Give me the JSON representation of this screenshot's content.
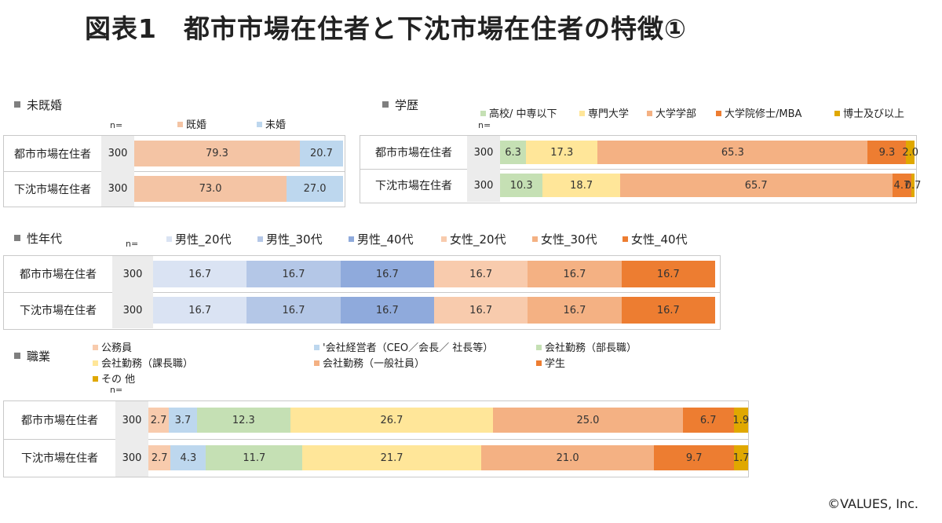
{
  "title": "図表1　都市市場在住者と下沈市場在住者の特徴①",
  "copyright": "©VALUES, Inc.",
  "n_label": "n=",
  "chart_data": [
    {
      "type": "bar",
      "stacked": true,
      "orientation": "horizontal",
      "title": "未既婚",
      "categories": [
        "都市市場在住者",
        "下沈市場在住者"
      ],
      "n": [
        300,
        300
      ],
      "series": [
        {
          "name": "既婚",
          "color": "#f4c4a4",
          "values": [
            79.3,
            73.0
          ]
        },
        {
          "name": "未婚",
          "color": "#bdd7ee",
          "values": [
            20.7,
            27.0
          ]
        }
      ],
      "labels": [
        [
          "79.3",
          "20.7"
        ],
        [
          "73.0",
          "27.0"
        ]
      ]
    },
    {
      "type": "bar",
      "stacked": true,
      "orientation": "horizontal",
      "title": "学歴",
      "categories": [
        "都市市場在住者",
        "下沈市場在住者"
      ],
      "n": [
        300,
        300
      ],
      "series": [
        {
          "name": "高校/ 中専以下",
          "color": "#c5e0b4",
          "values": [
            6.3,
            10.3
          ]
        },
        {
          "name": "専門大学",
          "color": "#ffe699",
          "values": [
            17.3,
            18.7
          ]
        },
        {
          "name": "大学学部",
          "color": "#f4b183",
          "values": [
            65.3,
            65.7
          ]
        },
        {
          "name": "大学院修士/MBA",
          "color": "#ed7d31",
          "values": [
            9.3,
            4.7
          ]
        },
        {
          "name": "博士及び以上",
          "color": "#e0a800",
          "values": [
            2.0,
            0.7
          ]
        }
      ],
      "labels": [
        [
          "6.3",
          "17.3",
          "65.3",
          "9.3",
          "2.0"
        ],
        [
          "10.3",
          "18.7",
          "65.7",
          "4.7",
          "0.7"
        ]
      ]
    },
    {
      "type": "bar",
      "stacked": true,
      "orientation": "horizontal",
      "title": "性年代",
      "categories": [
        "都市市場在住者",
        "下沈市場在住者"
      ],
      "n": [
        300,
        300
      ],
      "series": [
        {
          "name": "男性_20代",
          "color": "#dae3f3",
          "values": [
            16.7,
            16.7
          ]
        },
        {
          "name": "男性_30代",
          "color": "#b4c7e7",
          "values": [
            16.7,
            16.7
          ]
        },
        {
          "name": "男性_40代",
          "color": "#8faadc",
          "values": [
            16.7,
            16.7
          ]
        },
        {
          "name": "女性_20代",
          "color": "#f8cbad",
          "values": [
            16.7,
            16.7
          ]
        },
        {
          "name": "女性_30代",
          "color": "#f4b183",
          "values": [
            16.7,
            16.7
          ]
        },
        {
          "name": "女性_40代",
          "color": "#ed7d31",
          "values": [
            16.7,
            16.7
          ]
        }
      ],
      "labels": [
        [
          "16.7",
          "16.7",
          "16.7",
          "16.7",
          "16.7",
          "16.7"
        ],
        [
          "16.7",
          "16.7",
          "16.7",
          "16.7",
          "16.7",
          "16.7"
        ]
      ]
    },
    {
      "type": "bar",
      "stacked": true,
      "orientation": "horizontal",
      "title": "職業",
      "categories": [
        "都市市場在住者",
        "下沈市場在住者"
      ],
      "n": [
        300,
        300
      ],
      "series": [
        {
          "name": "公務員",
          "color": "#f8cbad",
          "values": [
            2.7,
            2.7
          ]
        },
        {
          "name": "'会社経営者（CEO／会長／ 社長等）",
          "color": "#bdd7ee",
          "values": [
            3.7,
            4.3
          ]
        },
        {
          "name": "会社勤務（部長職）",
          "color": "#c5e0b4",
          "values": [
            12.3,
            11.7
          ]
        },
        {
          "name": "会社勤務（課長職）",
          "color": "#ffe699",
          "values": [
            26.7,
            21.7
          ]
        },
        {
          "name": "会社勤務（一般社員）",
          "color": "#f4b183",
          "values": [
            25.0,
            21.0
          ]
        },
        {
          "name": "学生",
          "color": "#ed7d31",
          "values": [
            6.7,
            9.7
          ]
        },
        {
          "name": "その 他",
          "color": "#e0a800",
          "values": [
            1.9,
            1.7
          ]
        }
      ],
      "labels": [
        [
          "2.7",
          "3.7",
          "12.3",
          "26.7",
          "25.0",
          "6.7",
          "1.9"
        ],
        [
          "2.7",
          "4.3",
          "11.7",
          "21.7",
          "21.0",
          "9.7",
          "1.7"
        ]
      ]
    }
  ]
}
